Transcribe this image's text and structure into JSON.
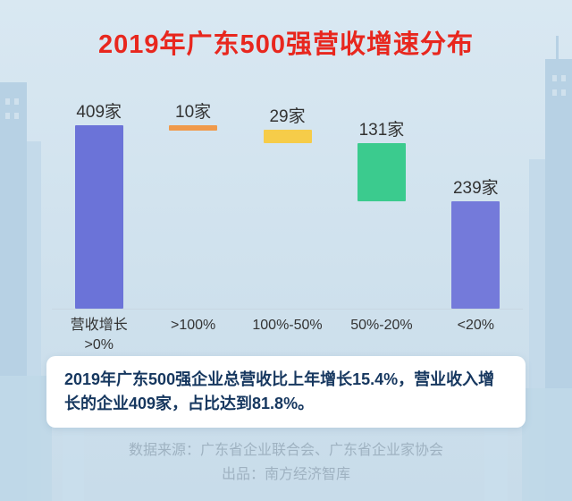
{
  "title": "2019年广东500强营收增速分布",
  "chart_data": {
    "type": "bar",
    "subtype": "waterfall",
    "categories": [
      "营收增长\n>0%",
      ">100%",
      "100%-50%",
      "50%-20%",
      "<20%"
    ],
    "values": [
      409,
      10,
      29,
      131,
      239
    ],
    "value_labels": [
      "409家",
      "10家",
      "29家",
      "131家",
      "239家"
    ],
    "unit": "家",
    "bar_colors": [
      "#6b73d8",
      "#f09a4b",
      "#f6cc49",
      "#3bcb8e",
      "#747ada"
    ],
    "total_index": 0,
    "ylim": [
      0,
      409
    ],
    "legend": "none",
    "grid": "off"
  },
  "note": {
    "text": "2019年广东500强企业总营收比上年增长15.4%，营业收入增长的企业409家，占比达到81.8%。"
  },
  "footer": {
    "source": "数据来源：广东省企业联合会、广东省企业家协会",
    "producer": "出品：南方经济智库"
  },
  "colors": {
    "title": "#e8271e",
    "background": "#cfe1ed",
    "note_text": "#16375f",
    "footer_text": "#9fb2c1",
    "axis_text": "#333333",
    "baseline": "#c7d6e2"
  }
}
